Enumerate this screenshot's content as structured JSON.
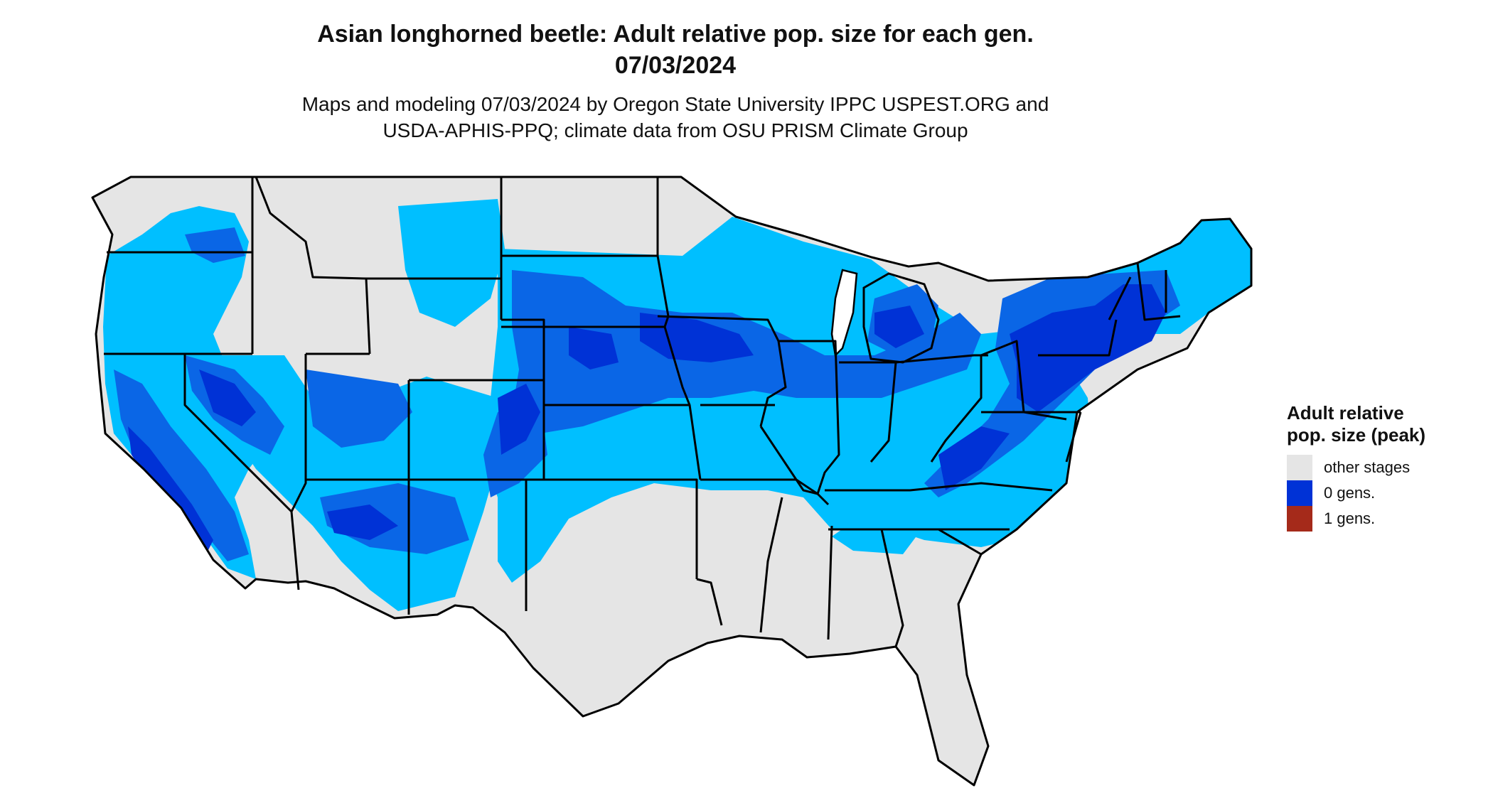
{
  "title": {
    "line1": "Asian longhorned beetle: Adult relative pop. size for each gen.",
    "line2": "07/03/2024"
  },
  "subtitle": {
    "line1": "Maps and modeling 07/03/2024 by Oregon State University IPPC USPEST.ORG and",
    "line2": "USDA-APHIS-PPQ; climate data from OSU PRISM Climate Group"
  },
  "legend": {
    "title": "Adult relative pop. size (peak)",
    "items": [
      {
        "label": "other stages",
        "color": "#e5e5e5"
      },
      {
        "label": "0 gens.",
        "color": "#0032d6"
      },
      {
        "label": "1 gens.",
        "color": "#a52a1a"
      }
    ]
  },
  "map": {
    "colors": {
      "land": "#e5e5e5",
      "light_blue": "#00bfff",
      "mid_blue": "#0a66e6",
      "dark_blue": "#0032d6",
      "border": "#000000"
    }
  }
}
